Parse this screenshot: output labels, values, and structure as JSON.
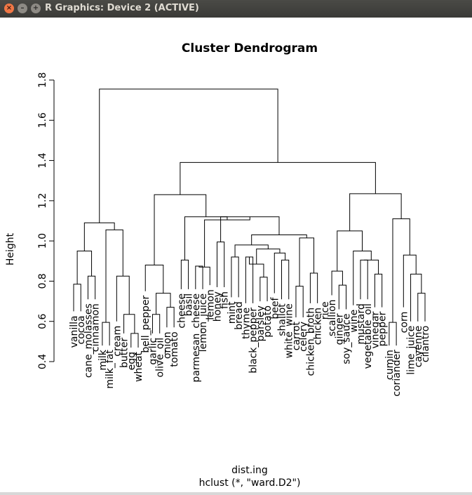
{
  "window": {
    "title": "R Graphics: Device 2 (ACTIVE)",
    "buttons": {
      "close": "×",
      "minimize": "–",
      "maximize": "+"
    }
  },
  "chart_data": {
    "type": "dendrogram",
    "title": "Cluster Dendrogram",
    "xlabel": "dist.ing",
    "sublabel": "hclust (*, \"ward.D2\")",
    "ylabel": "Height",
    "ylim": [
      0.4,
      1.8
    ],
    "yticks": [
      0.4,
      0.6,
      0.8,
      1.0,
      1.2,
      1.4,
      1.6,
      1.8
    ],
    "ytick_labels": [
      "0.4",
      "0.6",
      "0.8",
      "1.0",
      "1.2",
      "1.4",
      "1.6",
      "1.8"
    ],
    "leaves": [
      {
        "label": "vanilla",
        "height": 0.65
      },
      {
        "label": "cocoa",
        "height": 0.65
      },
      {
        "label": "cane_molasses",
        "height": 0.71
      },
      {
        "label": "cinnamon",
        "height": 0.71
      },
      {
        "label": "milk",
        "height": 0.48
      },
      {
        "label": "milk_fat",
        "height": 0.48
      },
      {
        "label": "cream",
        "height": 0.6
      },
      {
        "label": "butter",
        "height": 0.54
      },
      {
        "label": "egg",
        "height": 0.47
      },
      {
        "label": "wheat",
        "height": 0.47
      },
      {
        "label": "bell_pepper",
        "height": 0.75
      },
      {
        "label": "garlic",
        "height": 0.54
      },
      {
        "label": "olive_oil",
        "height": 0.54
      },
      {
        "label": "onion",
        "height": 0.57
      },
      {
        "label": "tomato",
        "height": 0.57
      },
      {
        "label": "cheese",
        "height": 0.76
      },
      {
        "label": "basil",
        "height": 0.76
      },
      {
        "label": "parmesan_cheese",
        "height": 0.76
      },
      {
        "label": "lemon_juice",
        "height": 0.76
      },
      {
        "label": "lemon",
        "height": 0.78
      },
      {
        "label": "honey",
        "height": 0.77
      },
      {
        "label": "fish",
        "height": 0.77
      },
      {
        "label": "mint",
        "height": 0.72
      },
      {
        "label": "bread",
        "height": 0.72
      },
      {
        "label": "thyme",
        "height": 0.69
      },
      {
        "label": "black_pepper",
        "height": 0.69
      },
      {
        "label": "parsley",
        "height": 0.7
      },
      {
        "label": "potato",
        "height": 0.7
      },
      {
        "label": "beef",
        "height": 0.74
      },
      {
        "label": "shallot",
        "height": 0.71
      },
      {
        "label": "white_wine",
        "height": 0.71
      },
      {
        "label": "carrot",
        "height": 0.62
      },
      {
        "label": "celery",
        "height": 0.62
      },
      {
        "label": "chicken_broth",
        "height": 0.69
      },
      {
        "label": "chicken",
        "height": 0.69
      },
      {
        "label": "rice",
        "height": 0.72
      },
      {
        "label": "scallion",
        "height": 0.73
      },
      {
        "label": "ginger",
        "height": 0.66
      },
      {
        "label": "soy_sauce",
        "height": 0.66
      },
      {
        "label": "wine",
        "height": 0.68
      },
      {
        "label": "mustard",
        "height": 0.71
      },
      {
        "label": "vegetable_oil",
        "height": 0.71
      },
      {
        "label": "vinegar",
        "height": 0.67
      },
      {
        "label": "pepper",
        "height": 0.67
      },
      {
        "label": "cumin",
        "height": 0.48
      },
      {
        "label": "coriander",
        "height": 0.48
      },
      {
        "label": "corn",
        "height": 0.67
      },
      {
        "label": "lime_juice",
        "height": 0.6
      },
      {
        "label": "cayenne",
        "height": 0.6
      },
      {
        "label": "cilantro",
        "height": 0.6
      }
    ],
    "merges": [
      [
        -1,
        -2,
        0.785
      ],
      [
        -3,
        -4,
        0.825
      ],
      [
        -5,
        -6,
        0.595
      ],
      [
        -9,
        -10,
        0.54
      ],
      [
        -8,
        4,
        0.635
      ],
      [
        -7,
        5,
        0.825
      ],
      [
        3,
        6,
        1.055
      ],
      [
        1,
        2,
        0.95
      ],
      [
        8,
        7,
        1.09
      ],
      [
        -12,
        -13,
        0.635
      ],
      [
        -14,
        -15,
        0.67
      ],
      [
        10,
        11,
        0.74
      ],
      [
        -11,
        12,
        0.88
      ],
      [
        -16,
        -17,
        0.905
      ],
      [
        -18,
        -19,
        0.875
      ],
      [
        -20,
        15,
        0.87
      ],
      [
        -21,
        -22,
        0.995
      ],
      [
        -23,
        -24,
        0.92
      ],
      [
        -25,
        -26,
        0.92
      ],
      [
        -27,
        -28,
        0.82
      ],
      [
        19,
        20,
        0.885
      ],
      [
        -30,
        -31,
        0.905
      ],
      [
        -29,
        22,
        0.94
      ],
      [
        21,
        23,
        0.96
      ],
      [
        24,
        18,
        0.98
      ],
      [
        -32,
        -33,
        0.775
      ],
      [
        -34,
        -35,
        0.84
      ],
      [
        26,
        27,
        1.015
      ],
      [
        25,
        28,
        1.03
      ],
      [
        17,
        29,
        1.12
      ],
      [
        16,
        30,
        1.105
      ],
      [
        14,
        31,
        1.12
      ],
      [
        13,
        32,
        1.23
      ],
      [
        -38,
        -39,
        0.78
      ],
      [
        -37,
        34,
        0.85
      ],
      [
        -41,
        -42,
        0.905
      ],
      [
        -43,
        -44,
        0.835
      ],
      [
        36,
        37,
        0.905
      ],
      [
        -40,
        38,
        0.95
      ],
      [
        35,
        39,
        1.05
      ],
      [
        -45,
        -46,
        0.595
      ],
      [
        -49,
        -50,
        0.74
      ],
      [
        -48,
        42,
        0.835
      ],
      [
        -47,
        43,
        0.93
      ],
      [
        41,
        44,
        1.11
      ],
      [
        40,
        45,
        1.235
      ],
      [
        33,
        46,
        1.39
      ],
      [
        9,
        47,
        1.755
      ]
    ]
  }
}
